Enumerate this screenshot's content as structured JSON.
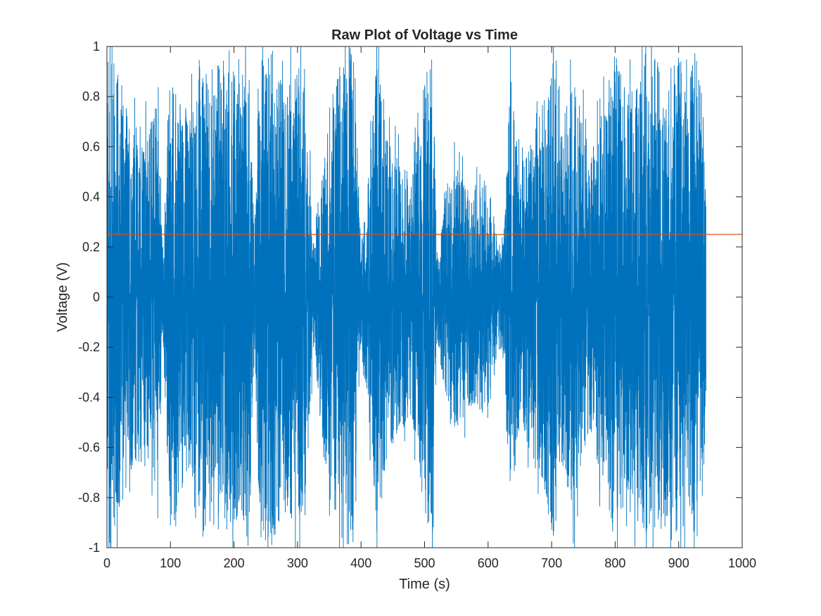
{
  "chart_data": {
    "type": "line",
    "title": "Raw Plot of Voltage vs Time",
    "xlabel": "Time (s)",
    "ylabel": "Voltage (V)",
    "xlim": [
      0,
      1000
    ],
    "ylim": [
      -1,
      1
    ],
    "x_ticks": [
      0,
      100,
      200,
      300,
      400,
      500,
      600,
      700,
      800,
      900,
      1000
    ],
    "x_tick_labels": [
      "0",
      "100",
      "200",
      "300",
      "400",
      "500",
      "600",
      "700",
      "800",
      "900",
      "1000"
    ],
    "y_ticks": [
      1,
      0.8,
      0.6,
      0.4,
      0.2,
      0,
      -0.2,
      -0.4,
      -0.6,
      -0.8,
      -1
    ],
    "y_tick_labels": [
      "1",
      "0.8",
      "0.6",
      "0.4",
      "0.2",
      "0",
      "-0.2",
      "-0.4",
      "-0.6",
      "-0.8",
      "-1"
    ],
    "grid": false,
    "box": true,
    "series": [
      {
        "color": "#0072BD",
        "x_range": [
          0,
          943
        ],
        "envelope": {
          "t": [
            0,
            10,
            20,
            40,
            60,
            80,
            88,
            95,
            100,
            120,
            140,
            150,
            170,
            190,
            210,
            225,
            232,
            240,
            260,
            280,
            300,
            315,
            325,
            340,
            360,
            380,
            390,
            400,
            415,
            425,
            440,
            460,
            480,
            500,
            512,
            520,
            540,
            560,
            580,
            600,
            615,
            625,
            635,
            650,
            670,
            690,
            705,
            715,
            730,
            745,
            760,
            780,
            800,
            820,
            840,
            860,
            880,
            900,
            915,
            925,
            935,
            943
          ],
          "amplitude": [
            0.95,
            0.95,
            0.8,
            0.65,
            0.6,
            0.7,
            0.15,
            0.6,
            0.85,
            0.7,
            0.7,
            0.85,
            0.85,
            0.9,
            0.8,
            0.9,
            0.2,
            0.9,
            0.95,
            0.75,
            0.9,
            0.7,
            0.2,
            0.55,
            0.85,
            0.95,
            0.9,
            0.15,
            0.55,
            0.9,
            0.6,
            0.5,
            0.45,
            0.8,
            0.95,
            0.15,
            0.5,
            0.45,
            0.4,
            0.45,
            0.2,
            0.2,
            0.85,
            0.45,
            0.6,
            0.75,
            0.95,
            0.6,
            0.8,
            0.75,
            0.5,
            0.7,
            0.9,
            0.75,
            0.85,
            0.95,
            0.8,
            0.95,
            0.75,
            0.95,
            0.8,
            0.35
          ]
        }
      },
      {
        "color": "#D95319",
        "type": "hline",
        "y": 0.25
      }
    ]
  }
}
